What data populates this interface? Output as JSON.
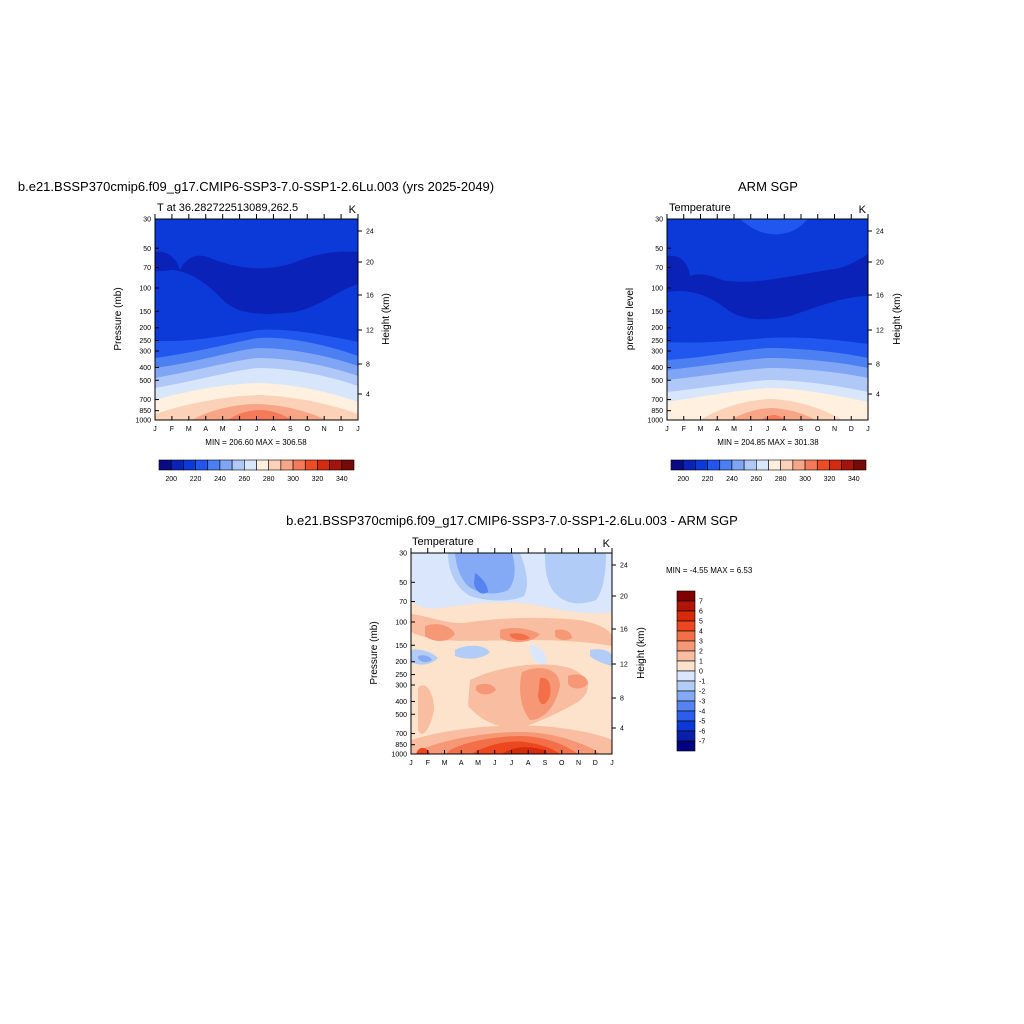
{
  "chart_data": [
    {
      "type": "heatmap",
      "title": "b.e21.BSSP370cmip6.f09_g17.CMIP6-SSP3-7.0-SSP1-2.6Lu.003 (yrs 2025-2049)",
      "subtitle_left": "T at 36.282722513089,262.5",
      "subtitle_right": "K",
      "ylabel": "Pressure (mb)",
      "ylabel_right": "Height (km)",
      "x_ticks": [
        "J",
        "F",
        "M",
        "A",
        "M",
        "J",
        "J",
        "A",
        "S",
        "O",
        "N",
        "D",
        "J"
      ],
      "y_ticks": [
        "30",
        "50",
        "70",
        "100",
        "150",
        "200",
        "250",
        "300",
        "400",
        "500",
        "700",
        "850",
        "1000"
      ],
      "y_ticks_right": [
        "24",
        "20",
        "16",
        "12",
        "8",
        "4"
      ],
      "stats": "MIN = 206.60 MAX = 306.58",
      "levels": [
        "200",
        "220",
        "240",
        "260",
        "280",
        "300",
        "320",
        "340"
      ],
      "min": 206.6,
      "max": 306.58
    },
    {
      "type": "heatmap",
      "title": "ARM SGP",
      "subtitle_left": "Temperature",
      "subtitle_right": "K",
      "ylabel": "pressure level",
      "ylabel_right": "Height (km)",
      "x_ticks": [
        "J",
        "F",
        "M",
        "A",
        "M",
        "J",
        "J",
        "A",
        "S",
        "O",
        "N",
        "D",
        "J"
      ],
      "y_ticks": [
        "30",
        "50",
        "70",
        "100",
        "150",
        "200",
        "250",
        "300",
        "400",
        "500",
        "700",
        "850",
        "1000"
      ],
      "y_ticks_right": [
        "24",
        "20",
        "16",
        "12",
        "8",
        "4"
      ],
      "stats": "MIN = 204.85 MAX = 301.38",
      "levels": [
        "200",
        "220",
        "240",
        "260",
        "280",
        "300",
        "320",
        "340"
      ],
      "min": 204.85,
      "max": 301.38
    },
    {
      "type": "heatmap",
      "title": "b.e21.BSSP370cmip6.f09_g17.CMIP6-SSP3-7.0-SSP1-2.6Lu.003 - ARM SGP",
      "subtitle_left": "Temperature",
      "subtitle_right": "K",
      "ylabel": "Pressure (mb)",
      "ylabel_right": "Height (km)",
      "x_ticks": [
        "J",
        "F",
        "M",
        "A",
        "M",
        "J",
        "J",
        "A",
        "S",
        "O",
        "N",
        "D",
        "J"
      ],
      "y_ticks": [
        "30",
        "50",
        "70",
        "100",
        "150",
        "200",
        "250",
        "300",
        "400",
        "500",
        "700",
        "850",
        "1000"
      ],
      "y_ticks_right": [
        "24",
        "20",
        "16",
        "12",
        "8",
        "4"
      ],
      "stats": "MIN =  -4.55 MAX =   6.53",
      "levels": [
        "7",
        "6",
        "5",
        "4",
        "3",
        "2",
        "1",
        "0",
        "-1",
        "-2",
        "-3",
        "-4",
        "-5",
        "-6",
        "-7"
      ],
      "min": -4.55,
      "max": 6.53
    }
  ],
  "palette_colors": [
    "#0a0a85",
    "#0b22b8",
    "#0b3ad8",
    "#2257ef",
    "#4c7ff2",
    "#7fa5f4",
    "#afc8f7",
    "#d8e6fb",
    "#fff0e0",
    "#fbd1b8",
    "#f8a587",
    "#f47a5a",
    "#ee4b27",
    "#d32a10",
    "#a3140b",
    "#760a06"
  ],
  "diff_palette_colors": [
    "#800000",
    "#b01508",
    "#d62b0b",
    "#ed471f",
    "#f36f47",
    "#f69875",
    "#f9bea2",
    "#fde2cc",
    "#d9e6fb",
    "#b1ccf7",
    "#85aaf5",
    "#5584f2",
    "#2c5ded",
    "#0b38d6",
    "#0b1eaa",
    "#000080"
  ]
}
